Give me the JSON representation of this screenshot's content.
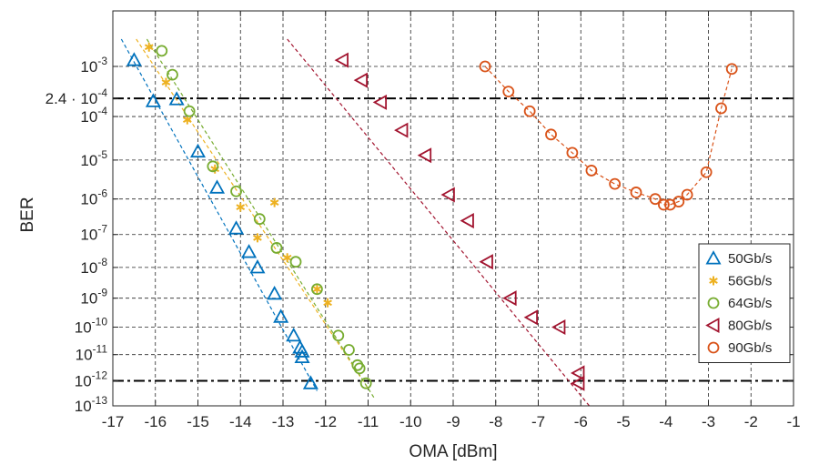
{
  "chart_data": {
    "type": "scatter",
    "xlabel": "OMA [dBm]",
    "ylabel": "BER",
    "xlim": [
      -17,
      -1
    ],
    "x_ticks": [
      -17,
      -16,
      -15,
      -14,
      -13,
      -12,
      -11,
      -10,
      -9,
      -8,
      -7,
      -6,
      -5,
      -4,
      -3,
      -2,
      -1
    ],
    "y_scale": "q-factor (erfc)",
    "y_ticks": [
      {
        "value": 0.001,
        "base": "10",
        "exp": "-3"
      },
      {
        "value": 0.00024,
        "label": "2.4 · 10",
        "exp": "-4"
      },
      {
        "value": 0.0001,
        "base": "10",
        "exp": "-4"
      },
      {
        "value": 1e-05,
        "base": "10",
        "exp": "-5"
      },
      {
        "value": 1e-06,
        "base": "10",
        "exp": "-6"
      },
      {
        "value": 1e-07,
        "base": "10",
        "exp": "-7"
      },
      {
        "value": 1e-08,
        "base": "10",
        "exp": "-8"
      },
      {
        "value": 1e-09,
        "base": "10",
        "exp": "-9"
      },
      {
        "value": 1e-10,
        "base": "10",
        "exp": "-10"
      },
      {
        "value": 1e-11,
        "base": "10",
        "exp": "-11"
      },
      {
        "value": 1e-12,
        "base": "10",
        "exp": "-12"
      },
      {
        "value": 1e-13,
        "base": "10",
        "exp": "-13"
      }
    ],
    "grid": true,
    "legend_position": "bottom-right",
    "threshold_lines": [
      0.00024,
      1e-12
    ],
    "series": [
      {
        "name": "50Gb/s",
        "marker": "triangle-up",
        "color": "#0072BD",
        "points": [
          [
            -16.5,
            0.0013
          ],
          [
            -16.05,
            0.00021
          ],
          [
            -15.5,
            0.00023
          ],
          [
            -15.0,
            1.6e-05
          ],
          [
            -14.55,
            2e-06
          ],
          [
            -14.1,
            1.5e-07
          ],
          [
            -13.8,
            3e-08
          ],
          [
            -13.6,
            1e-08
          ],
          [
            -13.2,
            1.4e-09
          ],
          [
            -13.05,
            2.3e-10
          ],
          [
            -12.75,
            5e-11
          ],
          [
            -12.6,
            1.8e-11
          ],
          [
            -12.55,
            1.3e-11
          ],
          [
            -12.55,
            8e-12
          ],
          [
            -12.35,
            8e-13
          ]
        ],
        "fit": [
          [
            -16.8,
            0.003
          ],
          [
            -12.2,
            4e-13
          ]
        ]
      },
      {
        "name": "56Gb/s",
        "marker": "asterisk",
        "color": "#EDB120",
        "points": [
          [
            -16.15,
            0.0022
          ],
          [
            -15.75,
            0.0005
          ],
          [
            -15.25,
            8.5e-05
          ],
          [
            -14.6,
            6e-06
          ],
          [
            -14.0,
            6e-07
          ],
          [
            -13.6,
            8e-08
          ],
          [
            -13.2,
            8e-07
          ],
          [
            -12.9,
            2e-08
          ],
          [
            -12.2,
            2e-09
          ],
          [
            -11.95,
            7e-10
          ]
        ],
        "fit": [
          [
            -16.45,
            0.003
          ],
          [
            -11.0,
            5e-13
          ]
        ]
      },
      {
        "name": "64Gb/s",
        "marker": "circle",
        "color": "#77AC30",
        "points": [
          [
            -15.85,
            0.0019
          ],
          [
            -15.6,
            0.0007
          ],
          [
            -15.2,
            0.00013
          ],
          [
            -14.65,
            7e-06
          ],
          [
            -14.1,
            1.6e-06
          ],
          [
            -13.55,
            2.8e-07
          ],
          [
            -13.15,
            4e-08
          ],
          [
            -12.7,
            1.5e-08
          ],
          [
            -12.2,
            2e-09
          ],
          [
            -11.7,
            5e-11
          ],
          [
            -11.45,
            1.5e-11
          ],
          [
            -11.25,
            4e-12
          ],
          [
            -11.2,
            3e-12
          ],
          [
            -11.05,
            8e-13
          ]
        ],
        "fit": [
          [
            -16.2,
            0.003
          ],
          [
            -10.85,
            2e-13
          ]
        ]
      },
      {
        "name": "80Gb/s",
        "marker": "triangle-left",
        "color": "#A2142F",
        "points": [
          [
            -11.6,
            0.0013
          ],
          [
            -11.15,
            0.00055
          ],
          [
            -10.7,
            0.0002
          ],
          [
            -10.2,
            5e-05
          ],
          [
            -9.65,
            1.3e-05
          ],
          [
            -9.1,
            1.3e-06
          ],
          [
            -8.65,
            2.5e-07
          ],
          [
            -8.2,
            1.5e-08
          ],
          [
            -7.65,
            1e-09
          ],
          [
            -7.15,
            2.2e-10
          ],
          [
            -6.5,
            1e-10
          ],
          [
            -6.05,
            2e-12
          ],
          [
            -6.05,
            8e-13
          ]
        ],
        "fit": [
          [
            -12.9,
            0.003
          ],
          [
            -5.8,
            1e-13
          ]
        ]
      },
      {
        "name": "90Gb/s",
        "marker": "circle",
        "color": "#D95319",
        "points": [
          [
            -8.25,
            0.001
          ],
          [
            -7.7,
            0.00033
          ],
          [
            -7.2,
            0.00013
          ],
          [
            -6.7,
            4e-05
          ],
          [
            -6.2,
            1.5e-05
          ],
          [
            -5.75,
            5.5e-06
          ],
          [
            -5.2,
            2.5e-06
          ],
          [
            -4.7,
            1.5e-06
          ],
          [
            -4.25,
            1e-06
          ],
          [
            -4.05,
            7e-07
          ],
          [
            -3.9,
            7e-07
          ],
          [
            -3.7,
            8.5e-07
          ],
          [
            -3.5,
            1.3e-06
          ],
          [
            -3.05,
            5e-06
          ],
          [
            -2.7,
            0.00015
          ],
          [
            -2.45,
            0.0009
          ]
        ],
        "fit": null
      }
    ]
  }
}
